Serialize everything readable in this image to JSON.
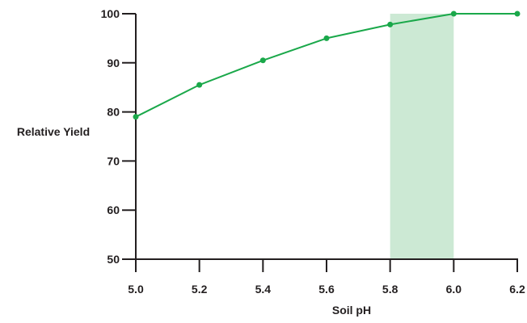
{
  "chart_data": {
    "type": "line",
    "title": "",
    "xlabel": "Soil pH",
    "ylabel": "Relative Yield",
    "x": [
      5.0,
      5.2,
      5.4,
      5.6,
      5.8,
      6.0,
      6.2
    ],
    "series": [
      {
        "values": [
          79,
          85.5,
          90.5,
          95,
          97.8,
          100,
          100
        ]
      }
    ],
    "xlim": [
      5.0,
      6.2
    ],
    "ylim": [
      50,
      100
    ],
    "x_ticks": [
      5.0,
      5.2,
      5.4,
      5.6,
      5.8,
      6.0,
      6.2
    ],
    "x_tick_labels": [
      "5.0",
      "5.2",
      "5.4",
      "5.6",
      "5.8",
      "6.0",
      "6.2"
    ],
    "y_ticks": [
      50,
      60,
      70,
      80,
      90,
      100
    ],
    "y_tick_labels": [
      "50",
      "60",
      "70",
      "80",
      "90",
      "100"
    ],
    "highlight_band": {
      "x_start": 5.8,
      "x_end": 6.0
    },
    "grid": false,
    "legend": "none",
    "colors": {
      "line": "#1aa84a",
      "band": "#cce9d4",
      "axis": "#231f20",
      "text": "#231f20"
    }
  }
}
